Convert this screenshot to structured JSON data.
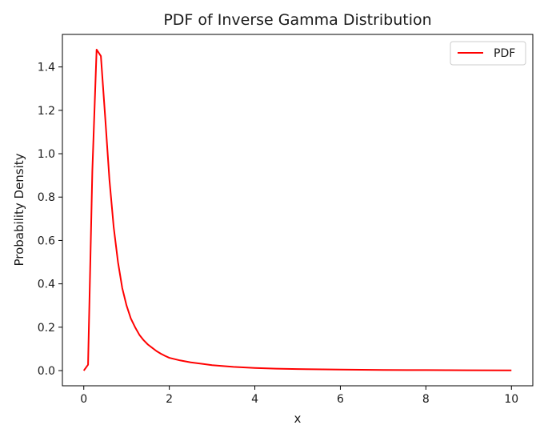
{
  "chart_data": {
    "type": "line",
    "title": "PDF of Inverse Gamma Distribution",
    "xlabel": "x",
    "ylabel": "Probability Density",
    "xlim": [
      -0.5,
      10.5
    ],
    "ylim": [
      -0.07,
      1.55
    ],
    "xticks": [
      0,
      2,
      4,
      6,
      8,
      10
    ],
    "yticks": [
      0.0,
      0.2,
      0.4,
      0.6,
      0.8,
      1.0,
      1.2,
      1.4
    ],
    "xtick_labels": [
      "0",
      "2",
      "4",
      "6",
      "8",
      "10"
    ],
    "ytick_labels": [
      "0.0",
      "0.2",
      "0.4",
      "0.6",
      "0.8",
      "1.0",
      "1.2",
      "1.4"
    ],
    "grid": false,
    "legend_position": "top-right",
    "series": [
      {
        "name": "PDF",
        "color": "#ff0000",
        "x": [
          0.0,
          0.1,
          0.2,
          0.3,
          0.4,
          0.5,
          0.6,
          0.7,
          0.8,
          0.9,
          1.0,
          1.1,
          1.2,
          1.3,
          1.4,
          1.5,
          1.6,
          1.7,
          1.8,
          1.9,
          2.0,
          2.25,
          2.5,
          3.0,
          3.5,
          4.0,
          4.5,
          5.0,
          6.0,
          7.0,
          8.0,
          9.0,
          10.0
        ],
        "y": [
          0.0,
          0.027,
          0.92,
          1.48,
          1.45,
          1.17,
          0.88,
          0.66,
          0.5,
          0.38,
          0.3,
          0.24,
          0.2,
          0.165,
          0.14,
          0.12,
          0.105,
          0.09,
          0.078,
          0.068,
          0.059,
          0.047,
          0.038,
          0.025,
          0.017,
          0.012,
          0.009,
          0.007,
          0.0045,
          0.003,
          0.0022,
          0.0016,
          0.0012
        ]
      }
    ]
  }
}
